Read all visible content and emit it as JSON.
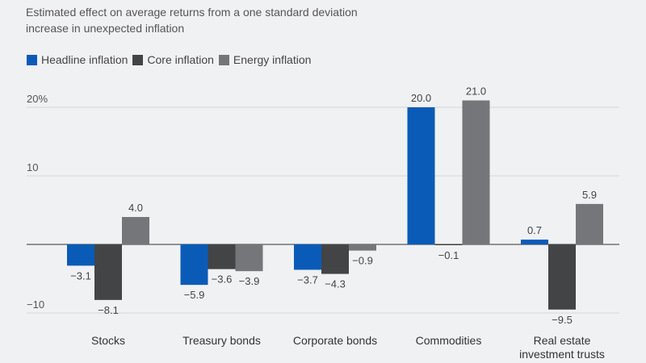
{
  "chart_data": {
    "type": "bar",
    "title": "",
    "subtitle": "Estimated effect on average returns from a one standard deviation increase in unexpected inflation",
    "xlabel": "",
    "ylabel": "",
    "ylim": [
      -10,
      20
    ],
    "yticks": [
      {
        "value": 20,
        "label": "20%"
      },
      {
        "value": 10,
        "label": "10"
      },
      {
        "value": 0,
        "label": ""
      },
      {
        "value": -10,
        "label": "−10"
      }
    ],
    "categories": [
      [
        "Stocks"
      ],
      [
        "Treasury bonds"
      ],
      [
        "Corporate bonds"
      ],
      [
        "Commodities"
      ],
      [
        "Real estate",
        "investment trusts"
      ]
    ],
    "series": [
      {
        "name": "Headline inflation",
        "color": "#0a5bb8",
        "values": [
          -3.1,
          -5.9,
          -3.7,
          20.0,
          0.7
        ],
        "labels": [
          "−3.1",
          "−5.9",
          "−3.7",
          "20.0",
          "0.7"
        ]
      },
      {
        "name": "Core inflation",
        "color": "#434446",
        "values": [
          -8.1,
          -3.6,
          -4.3,
          -0.1,
          -9.5
        ],
        "labels": [
          "−8.1",
          "−3.6",
          "−4.3",
          "−0.1",
          "−9.5"
        ]
      },
      {
        "name": "Energy inflation",
        "color": "#75767a",
        "values": [
          4.0,
          -3.9,
          -0.9,
          21.0,
          5.9
        ],
        "labels": [
          "4.0",
          "−3.9",
          "−0.9",
          "21.0",
          "5.9"
        ]
      }
    ],
    "grid": true,
    "legend": "top-left"
  }
}
